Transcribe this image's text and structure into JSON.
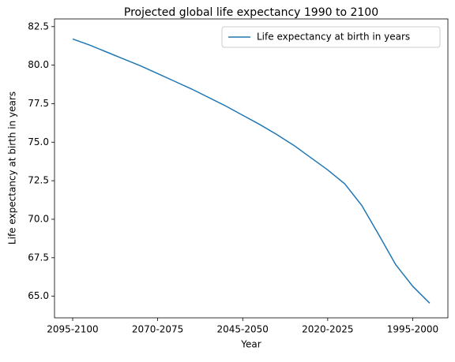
{
  "chart_data": {
    "type": "line",
    "title": "Projected global life expectancy 1990 to 2100",
    "x_label": "Year",
    "y_label": "Life expectancy at birth in years",
    "categories": [
      "2095-2100",
      null,
      null,
      null,
      null,
      "2070-2075",
      null,
      null,
      null,
      null,
      "2045-2050",
      null,
      null,
      null,
      null,
      "2020-2025",
      null,
      null,
      null,
      null,
      "1995-2000",
      null
    ],
    "series": [
      {
        "name": "Life expectancy at birth in years",
        "color": "#1f77b4",
        "values": [
          81.7,
          81.3,
          80.85,
          80.4,
          79.95,
          79.45,
          78.95,
          78.45,
          77.9,
          77.35,
          76.75,
          76.15,
          75.5,
          74.8,
          74.0,
          73.2,
          72.3,
          70.9,
          69.0,
          67.05,
          65.65,
          64.55
        ]
      }
    ],
    "ylim": [
      63.6,
      83.0
    ],
    "yticks": [
      {
        "value": 65,
        "label": "65.0"
      },
      67.5,
      {
        "value": 70,
        "label": "70.0"
      },
      72.5,
      {
        "value": 75,
        "label": "75.0"
      },
      77.5,
      {
        "value": 80,
        "label": "80.0"
      },
      82.5
    ],
    "legend": "upper right"
  }
}
